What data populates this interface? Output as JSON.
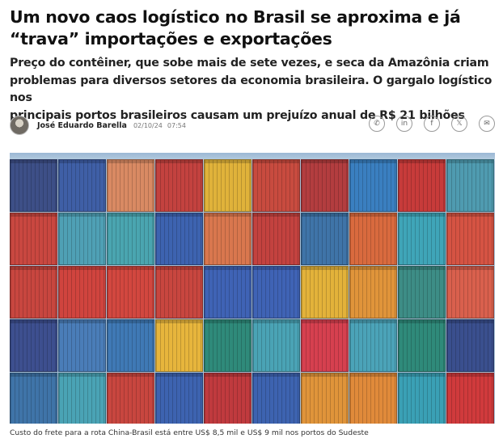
{
  "article": {
    "headline_line1": "Um novo caos logístico no Brasil se aproxima e já",
    "headline_line2": "“trava” importações e exportações",
    "subhead_line1": "Preço do contêiner, que sobe mais de sete vezes, e seca da Amazônia criam",
    "subhead_line2": "problemas para diversos setores da economia brasileira. O gargalo logístico nos",
    "subhead_line3": "principais portos brasileiros causam um prejuízo anual de R$ 21 bilhões"
  },
  "byline": {
    "author": "José Eduardo Barella",
    "date": "02/10/24",
    "time": "07:54"
  },
  "share": [
    {
      "icon": "whatsapp-icon",
      "glyph": "✆"
    },
    {
      "icon": "linkedin-icon",
      "glyph": "in"
    },
    {
      "icon": "facebook-icon",
      "glyph": "f"
    },
    {
      "icon": "x-icon",
      "glyph": "𝕏"
    },
    {
      "icon": "email-icon",
      "glyph": "✉"
    }
  ],
  "photo": {
    "rows": [
      [
        "#3d4f87",
        "#3f5fa6",
        "#d98a63",
        "#c3423f",
        "#e0b23a",
        "#c84b3f",
        "#b33d3f",
        "#3a7fc0",
        "#c73b3a",
        "#4f9bb0"
      ],
      [
        "#c94740",
        "#4fa0b5",
        "#4aa5b0",
        "#3d63b0",
        "#d9774e",
        "#c3423f",
        "#3f74a8",
        "#d96a3e",
        "#3fa5b8",
        "#d55343"
      ],
      [
        "#c8463f",
        "#d0443e",
        "#d2473f",
        "#c8463f",
        "#3f63b5",
        "#3f63b5",
        "#e3b23a",
        "#e0943a",
        "#3d8d86",
        "#d9604d"
      ],
      [
        "#3d4f8f",
        "#4a7db8",
        "#3f79b5",
        "#e7b53c",
        "#2f8a7a",
        "#4aa3b5",
        "#d6404f",
        "#4ba3b8",
        "#2f8a7a",
        "#3a4f8e"
      ],
      [
        "#3f74a8",
        "#4aa3b5",
        "#c8463f",
        "#3d63b0",
        "#c03a3e",
        "#3d63b0",
        "#e0943a",
        "#e08a3a",
        "#3aa0b5",
        "#d03a3c"
      ]
    ]
  },
  "caption": "Custo do frete para a rota China-Brasil está entre US$ 8,5 mil e US$ 9 mil nos portos do Sudeste"
}
